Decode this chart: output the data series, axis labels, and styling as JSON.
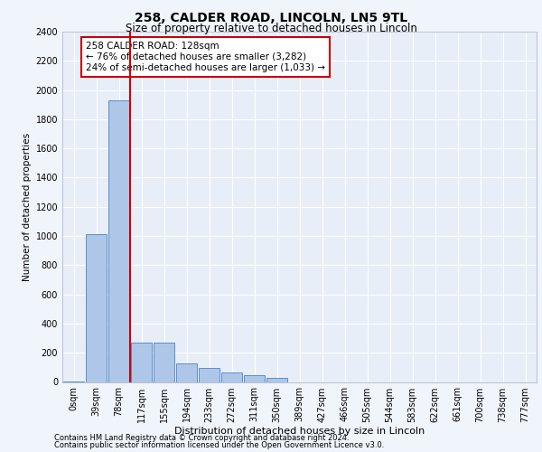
{
  "title1": "258, CALDER ROAD, LINCOLN, LN5 9TL",
  "title2": "Size of property relative to detached houses in Lincoln",
  "xlabel": "Distribution of detached houses by size in Lincoln",
  "ylabel": "Number of detached properties",
  "categories": [
    "0sqm",
    "39sqm",
    "78sqm",
    "117sqm",
    "155sqm",
    "194sqm",
    "233sqm",
    "272sqm",
    "311sqm",
    "350sqm",
    "389sqm",
    "427sqm",
    "466sqm",
    "505sqm",
    "544sqm",
    "583sqm",
    "622sqm",
    "661sqm",
    "700sqm",
    "738sqm",
    "777sqm"
  ],
  "values": [
    5,
    1010,
    1930,
    270,
    270,
    130,
    95,
    65,
    45,
    30,
    0,
    0,
    0,
    0,
    0,
    0,
    0,
    0,
    0,
    0,
    0
  ],
  "bar_color": "#aec6e8",
  "bar_edge_color": "#5b8fc9",
  "vline_color": "#cc0000",
  "vline_x_index": 2.5,
  "annotation_text": "258 CALDER ROAD: 128sqm\n← 76% of detached houses are smaller (3,282)\n24% of semi-detached houses are larger (1,033) →",
  "annotation_box_edge_color": "#cc0000",
  "ylim": [
    0,
    2400
  ],
  "yticks": [
    0,
    200,
    400,
    600,
    800,
    1000,
    1200,
    1400,
    1600,
    1800,
    2000,
    2200,
    2400
  ],
  "footer1": "Contains HM Land Registry data © Crown copyright and database right 2024.",
  "footer2": "Contains public sector information licensed under the Open Government Licence v3.0.",
  "bg_color": "#f0f4fb",
  "plot_bg_color": "#e8eef8",
  "title1_fontsize": 10,
  "title2_fontsize": 8.5,
  "ylabel_fontsize": 7.5,
  "xlabel_fontsize": 8,
  "tick_fontsize": 7,
  "footer_fontsize": 6,
  "annot_fontsize": 7.5
}
